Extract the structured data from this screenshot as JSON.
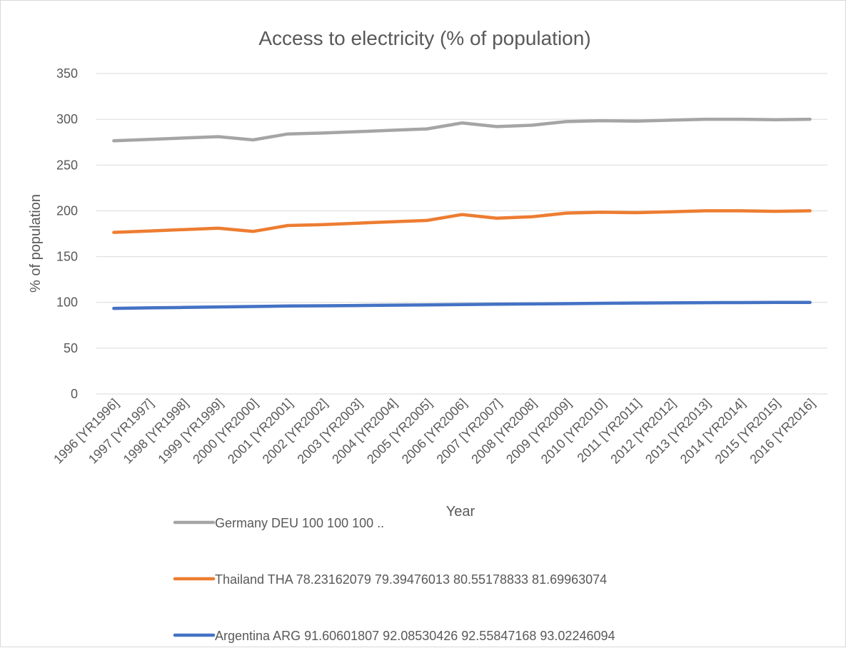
{
  "chart_data": {
    "type": "line",
    "title": "Access to electricity (% of population)",
    "xlabel": "Year",
    "ylabel": "% of population",
    "ylim": [
      0,
      350
    ],
    "yticks": [
      0,
      50,
      100,
      150,
      200,
      250,
      300,
      350
    ],
    "grid": true,
    "legend_position": "bottom",
    "categories": [
      "1996 [YR1996]",
      "1997 [YR1997]",
      "1998 [YR1998]",
      "1999 [YR1999]",
      "2000 [YR2000]",
      "2001 [YR2001]",
      "2002 [YR2002]",
      "2003 [YR2003]",
      "2004 [YR2004]",
      "2005 [YR2005]",
      "2006 [YR2006]",
      "2007 [YR2007]",
      "2008 [YR2008]",
      "2009 [YR2009]",
      "2010 [YR2010]",
      "2011 [YR2011]",
      "2012 [YR2012]",
      "2013 [YR2013]",
      "2014 [YR2014]",
      "2015 [YR2015]",
      "2016 [YR2016]"
    ],
    "series": [
      {
        "name": "Germany DEU 100 100 100 ..",
        "color": "#a5a5a5",
        "values": [
          276.5,
          278,
          279.5,
          281,
          277.5,
          284,
          285,
          286.5,
          288,
          289.5,
          296,
          292,
          293.5,
          297.5,
          298.5,
          298,
          299,
          300,
          300,
          299.5,
          300
        ]
      },
      {
        "name": "Thailand THA 78.23162079 79.39476013 80.55178833 81.69963074",
        "color": "#ed7d31",
        "values": [
          176.5,
          178,
          179.5,
          181,
          177.5,
          184,
          185,
          186.5,
          188,
          189.5,
          196,
          192,
          193.5,
          197.5,
          198.5,
          198,
          199,
          200,
          200,
          199.5,
          200
        ]
      },
      {
        "name": "Argentina ARG 91.60601807 92.08530426 92.55847168 93.02246094",
        "color": "#4472c4",
        "values": [
          93.5,
          94,
          94.5,
          95,
          95.5,
          96,
          96.3,
          96.6,
          97,
          97.3,
          97.6,
          98,
          98.3,
          98.6,
          99,
          99.3,
          99.5,
          99.7,
          99.8,
          99.9,
          100
        ]
      }
    ]
  }
}
